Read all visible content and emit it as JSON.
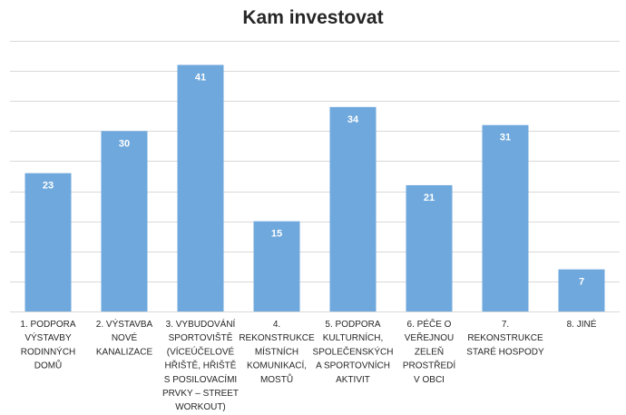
{
  "chart_data": {
    "type": "bar",
    "title": "Kam investovat",
    "categories": [
      [
        "1. PODPORA",
        "VÝSTAVBY",
        "RODINNÝCH",
        "DOMŮ"
      ],
      [
        "2. VÝSTAVBA",
        "NOVÉ",
        "KANALIZACE"
      ],
      [
        "3. VYBUDOVÁNÍ",
        "SPORTOVIŠTĚ",
        "(VÍCEÚČELOVÉ",
        "HŘIŠTĚ, HŘIŠTĚ",
        "S POSILOVACÍMI",
        "PRVKY – STREET",
        "WORKOUT)"
      ],
      [
        "4.",
        "REKONSTRUKCE",
        "MÍSTNÍCH",
        "KOMUNIKACÍ,",
        "MOSTŮ"
      ],
      [
        "5. PODPORA",
        "KULTURNÍCH,",
        "SPOLEČENSKÝCH",
        "A SPORTOVNÍCH",
        "AKTIVIT"
      ],
      [
        "6. PÉČE O",
        "VEŘEJNOU",
        "ZELEŇ",
        "PROSTŘEDÍ",
        "V OBCI"
      ],
      [
        "7.",
        "REKONSTRUKCE",
        "STARÉ HOSPODY"
      ],
      [
        "8. JINÉ"
      ]
    ],
    "values": [
      23,
      30,
      41,
      15,
      34,
      21,
      31,
      7
    ],
    "ylim": [
      0,
      45
    ],
    "grid": true,
    "bar_color": "#6fa8dc",
    "grid_color": "#d9d9d9"
  }
}
